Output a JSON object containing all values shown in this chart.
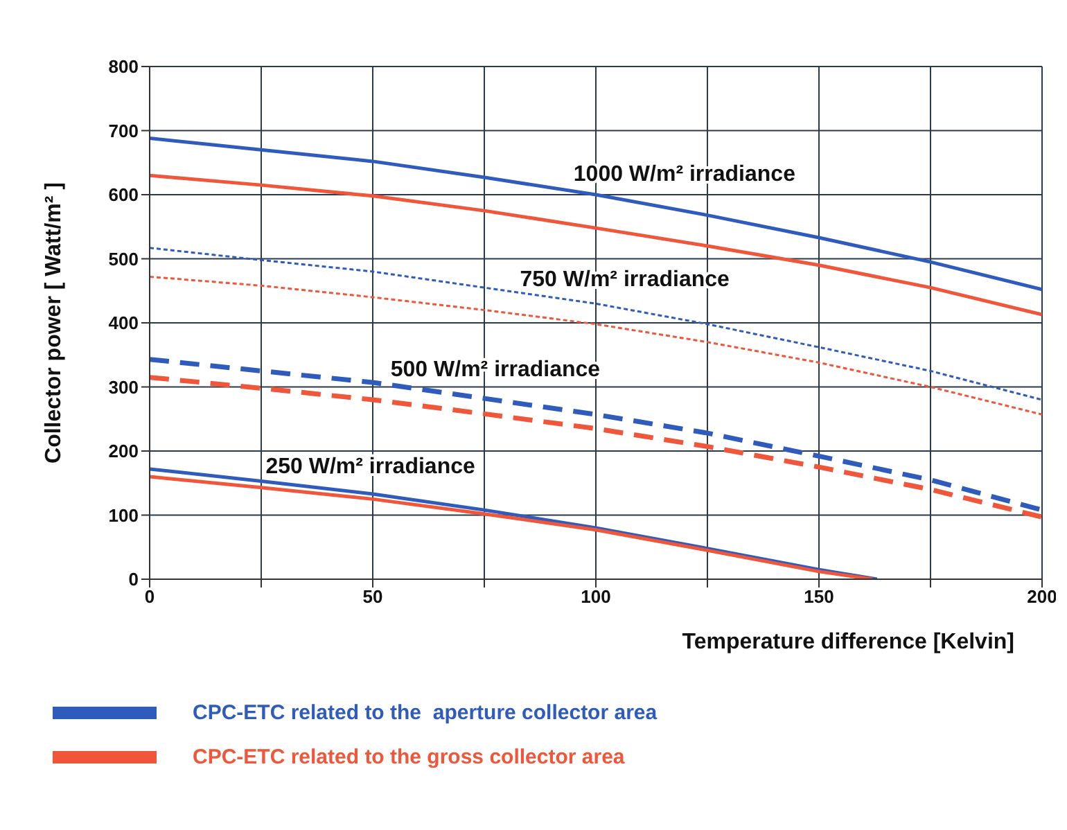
{
  "chart_data": {
    "type": "line",
    "xlabel": "Temperature difference [Kelvin]",
    "ylabel": "Collector power [ Watt/m² ]",
    "x": [
      0,
      25,
      50,
      75,
      100,
      125,
      150,
      175,
      200
    ],
    "xlim": [
      0,
      200
    ],
    "xticks": [
      0,
      {
        "value": 25,
        "label": null
      },
      50,
      {
        "value": 75,
        "label": null
      },
      100,
      {
        "value": 125,
        "label": null
      },
      150,
      {
        "value": 175,
        "label": null
      },
      200
    ],
    "ylim": [
      0,
      800
    ],
    "yticks": [
      0,
      100,
      200,
      300,
      400,
      500,
      600,
      700,
      800
    ],
    "grid": true,
    "legend": "bottom",
    "series": [
      {
        "name": "CPC-ETC related to the  aperture collector area",
        "color": "#2f5bbd",
        "line_style": "solid",
        "values": [
          688,
          670,
          652,
          627,
          600,
          568,
          533,
          495,
          452
        ]
      },
      {
        "name": "CPC-ETC related to the gross collector area",
        "color": "#f0563a",
        "line_style": "solid",
        "values": [
          630,
          615,
          598,
          575,
          548,
          520,
          490,
          455,
          413
        ]
      },
      {
        "color": "#2f5bbd",
        "line_style": "dotted",
        "values": [
          517,
          498,
          480,
          455,
          430,
          398,
          362,
          325,
          280
        ]
      },
      {
        "color": "#f0563a",
        "line_style": "dotted",
        "values": [
          472,
          458,
          440,
          420,
          398,
          370,
          338,
          300,
          257
        ]
      },
      {
        "color": "#2f5bbd",
        "line_style": "dashed",
        "values": [
          343,
          325,
          307,
          282,
          257,
          228,
          192,
          155,
          108
        ]
      },
      {
        "color": "#f0563a",
        "line_style": "dashed",
        "values": [
          315,
          298,
          280,
          258,
          235,
          207,
          175,
          140,
          97
        ]
      },
      {
        "color": "#2f5bbd",
        "line_style": "solid",
        "x": [
          0,
          25,
          50,
          75,
          100,
          125,
          150,
          163
        ],
        "values": [
          172,
          153,
          133,
          108,
          80,
          48,
          15,
          0
        ]
      },
      {
        "color": "#f0563a",
        "line_style": "solid",
        "x": [
          0,
          25,
          50,
          75,
          100,
          125,
          150,
          162
        ],
        "values": [
          160,
          143,
          125,
          102,
          77,
          45,
          12,
          0
        ]
      }
    ],
    "annotations": [
      "1000 W/m² irradiance",
      "750 W/m² irradiance",
      "500 W/m² irradiance",
      "250 W/m² irradiance"
    ]
  }
}
